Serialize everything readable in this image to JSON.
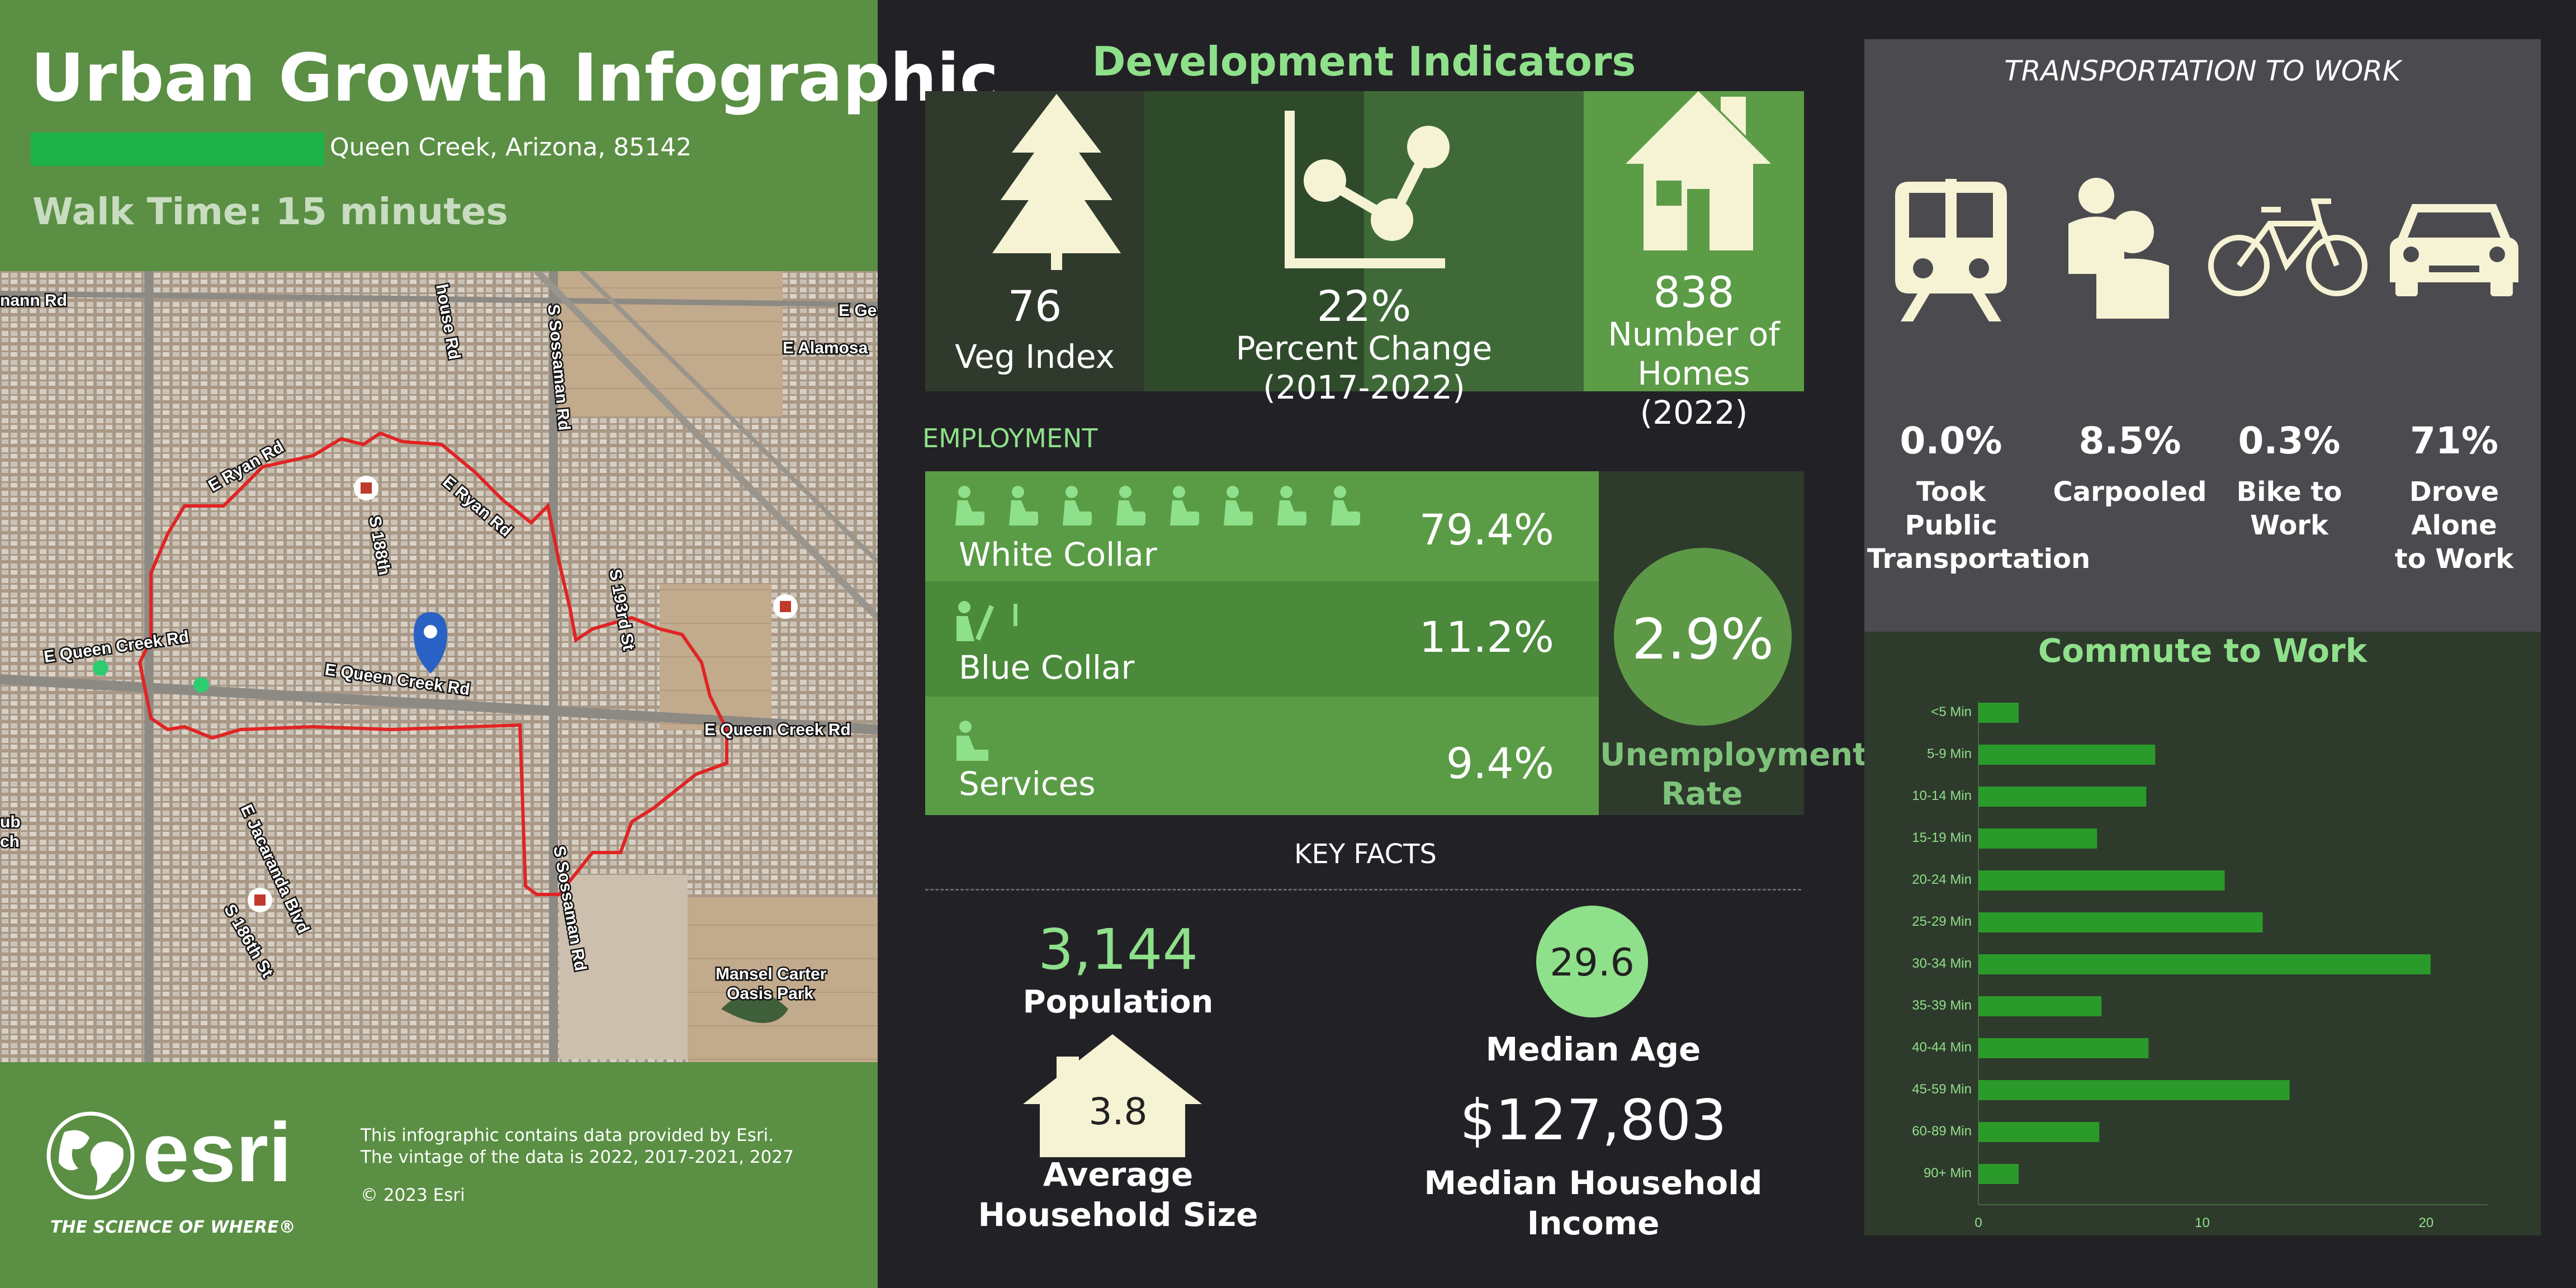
{
  "header": {
    "title": "Urban Growth Infographic",
    "location": "Queen Creek, Arizona, 85142",
    "walk_time": "Walk Time: 15 minutes"
  },
  "map": {
    "labels": {
      "mann_rd": "nann Rd",
      "e_ryan_rd_1": "E Ryan Rd",
      "e_ryan_rd_2": "E Ryan Rd",
      "s_188th": "S 188th",
      "house_rd": "house Rd",
      "s_sossaman_rd": "S Sossaman Rd",
      "e_alamosa": "E Alamosa",
      "e_ge": "E Ge",
      "s_193rd_st": "S 193rd St",
      "e_queen_creek_rd_1": "E Queen Creek Rd",
      "e_queen_creek_rd_2": "E Queen Creek Rd",
      "e_queen_creek_rd_3": "E Queen Creek Rd",
      "e_jacaranda_blvd": "E Jacaranda Blvd",
      "s_186th_st": "S 186th St",
      "s_sossaman_rd_2": "S Sossaman Rd",
      "mansel_carter": "Mansel Carter",
      "oasis_park": "Oasis Park",
      "ub": "ub",
      "ch": "ch"
    }
  },
  "footer": {
    "logo_text": "esri",
    "tagline": "THE SCIENCE OF WHERE®",
    "note_line1": "This infographic contains data provided by Esri.",
    "note_line2": "The vintage of the data is 2022, 2017-2021, 2027",
    "copyright": "© 2023 Esri"
  },
  "development": {
    "title": "Development Indicators",
    "veg_index": {
      "value": "76",
      "label": "Veg Index"
    },
    "percent_change": {
      "value": "22%",
      "label1": "Percent Change",
      "label2": "(2017-2022)"
    },
    "homes": {
      "value": "838",
      "label1": "Number of",
      "label2": "Homes (2022)"
    }
  },
  "employment": {
    "heading": "EMPLOYMENT",
    "rows": [
      {
        "label": "White Collar",
        "value": "79.4%"
      },
      {
        "label": "Blue Collar",
        "value": "11.2%"
      },
      {
        "label": "Services",
        "value": "9.4%"
      }
    ],
    "unemployment_value": "2.9%",
    "unemployment_label1": "Unemployment",
    "unemployment_label2": "Rate"
  },
  "key_facts": {
    "heading": "KEY FACTS",
    "population_value": "3,144",
    "population_label": "Population",
    "household_size_value": "3.8",
    "household_size_label1": "Average",
    "household_size_label2": "Household Size",
    "median_age_value": "29.6",
    "median_age_label": "Median Age",
    "median_income_value": "$127,803",
    "median_income_label1": "Median Household",
    "median_income_label2": "Income"
  },
  "transportation": {
    "title": "TRANSPORTATION TO WORK",
    "items": [
      {
        "icon": "train-icon",
        "value": "0.0%",
        "label1": "Took Public",
        "label2": "Transportation"
      },
      {
        "icon": "people-icon",
        "value": "8.5%",
        "label1": "Carpooled",
        "label2": ""
      },
      {
        "icon": "bicycle-icon",
        "value": "0.3%",
        "label1": "Bike to",
        "label2": "Work"
      },
      {
        "icon": "car-icon",
        "value": "71%",
        "label1": "Drove Alone",
        "label2": "to Work"
      }
    ]
  },
  "colors": {
    "panel_green": "#5a8f44",
    "accent_green": "#8fe08a",
    "bar_green": "#2a9a2a",
    "dark_bg": "#222226"
  },
  "chart_data": {
    "type": "bar",
    "orientation": "horizontal",
    "title": "Commute to Work",
    "categories": [
      "<5 Min",
      "5-9 Min",
      "10-14 Min",
      "15-19 Min",
      "20-24 Min",
      "25-29 Min",
      "30-34 Min",
      "35-39 Min",
      "40-44 Min",
      "45-59 Min",
      "60-89 Min",
      "90+ Min"
    ],
    "values": [
      1.8,
      7.9,
      7.5,
      5.3,
      11.0,
      12.7,
      20.2,
      5.5,
      7.6,
      13.9,
      5.4,
      1.8
    ],
    "xlim": [
      0,
      22
    ],
    "xticks": [
      "0",
      "10",
      "20"
    ],
    "grid": false
  }
}
